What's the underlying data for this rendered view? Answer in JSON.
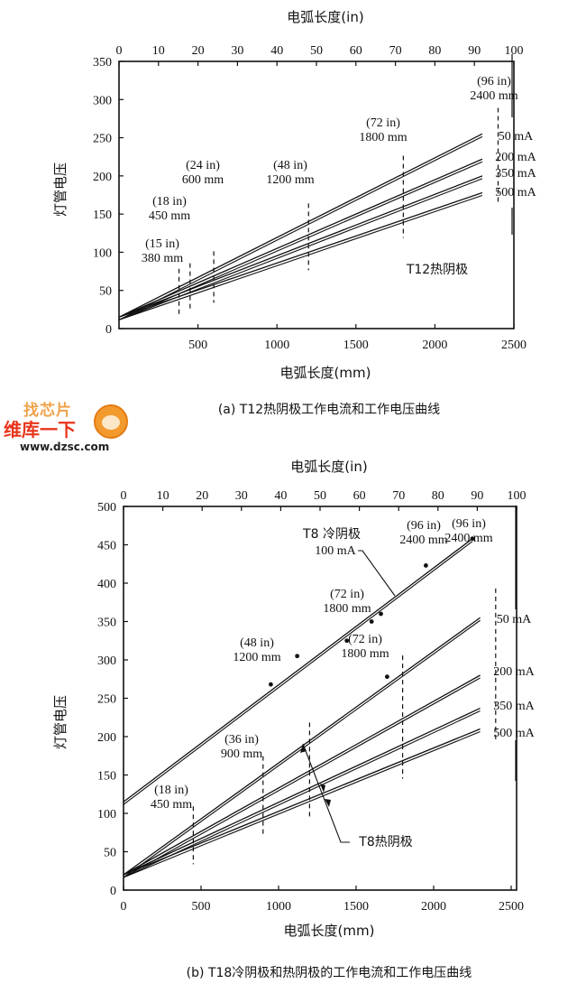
{
  "chart_data": [
    {
      "id": "a",
      "type": "line",
      "title": "(a) T12热阴极工作电流和工作电压曲线",
      "xlabel": "电弧长度(mm)",
      "x2label": "电弧长度(in)",
      "ylabel": "灯管电压",
      "xlim": [
        0,
        2500
      ],
      "x2lim": [
        0,
        100
      ],
      "ylim": [
        0,
        350
      ],
      "xticks": [
        500,
        1000,
        1500,
        2000,
        2500
      ],
      "x2ticks": [
        0,
        10,
        20,
        30,
        40,
        50,
        60,
        70,
        80,
        90,
        100
      ],
      "yticks": [
        0,
        50,
        100,
        150,
        200,
        250,
        300,
        350
      ],
      "grid": false,
      "annotation": "T12热阴极",
      "series": [
        {
          "name": "50 mA",
          "x": [
            0,
            2300
          ],
          "y": [
            15,
            255
          ]
        },
        {
          "name": "200 mA",
          "x": [
            0,
            2300
          ],
          "y": [
            15,
            222
          ]
        },
        {
          "name": "350 mA",
          "x": [
            0,
            2300
          ],
          "y": [
            15,
            200
          ]
        },
        {
          "name": "500 mA",
          "x": [
            0,
            2300
          ],
          "y": [
            15,
            178
          ]
        }
      ],
      "markers": [
        {
          "mm": 380,
          "label_in": "(15 in)",
          "label_mm": "380 mm"
        },
        {
          "mm": 450,
          "label_in": "(18 in)",
          "label_mm": "450 mm"
        },
        {
          "mm": 600,
          "label_in": "(24 in)",
          "label_mm": "600 mm"
        },
        {
          "mm": 1200,
          "label_in": "(48 in)",
          "label_mm": "1200 mm"
        },
        {
          "mm": 1800,
          "label_in": "(72 in)",
          "label_mm": "1800 mm"
        },
        {
          "mm": 2400,
          "label_in": "(96 in)",
          "label_mm": "2400 mm"
        }
      ]
    },
    {
      "id": "b",
      "type": "line",
      "title": "(b) T18冷阴极和热阴极的工作电流和工作电压曲线",
      "xlabel": "电弧长度(mm)",
      "x2label": "电弧长度(in)",
      "ylabel": "灯管电压",
      "xlim": [
        0,
        2550
      ],
      "x2lim": [
        0,
        100
      ],
      "ylim": [
        0,
        500
      ],
      "xticks": [
        0,
        500,
        1000,
        1500,
        2000,
        2500
      ],
      "x2ticks": [
        0,
        10,
        20,
        30,
        40,
        50,
        60,
        70,
        80,
        90,
        100
      ],
      "yticks": [
        0,
        50,
        100,
        150,
        200,
        250,
        300,
        350,
        400,
        450,
        500
      ],
      "grid": false,
      "annotations": [
        "T8 冷阴极",
        "100 mA",
        "T8热阴极"
      ],
      "series": [
        {
          "name": "T8 冷阴极 100 mA",
          "x": [
            0,
            2250
          ],
          "y": [
            115,
            458
          ]
        },
        {
          "name": "50 mA",
          "x": [
            0,
            2300
          ],
          "y": [
            20,
            355
          ]
        },
        {
          "name": "200 mA",
          "x": [
            0,
            2300
          ],
          "y": [
            20,
            280
          ]
        },
        {
          "name": "350 mA",
          "x": [
            0,
            2300
          ],
          "y": [
            20,
            237
          ]
        },
        {
          "name": "500 mA",
          "x": [
            0,
            2300
          ],
          "y": [
            20,
            210
          ]
        }
      ],
      "scatter": [
        {
          "x": 950,
          "y": 268
        },
        {
          "x": 1120,
          "y": 305
        },
        {
          "x": 1440,
          "y": 325
        },
        {
          "x": 1600,
          "y": 350
        },
        {
          "x": 1660,
          "y": 360
        },
        {
          "x": 1700,
          "y": 278
        },
        {
          "x": 1950,
          "y": 423
        },
        {
          "x": 2250,
          "y": 458
        }
      ],
      "markers": [
        {
          "mm": 450,
          "label_in": "(18 in)",
          "label_mm": "450 mm"
        },
        {
          "mm": 900,
          "label_in": "(36 in)",
          "label_mm": "900 mm"
        },
        {
          "mm": 1200,
          "label_in": "(48 in)",
          "label_mm": "1200 mm"
        },
        {
          "mm": 1800,
          "label_in": "(72 in)",
          "label_mm": "1800 mm"
        },
        {
          "mm": 2400,
          "label_in": "(96 in)",
          "label_mm": "2400 mm"
        }
      ]
    }
  ],
  "watermark": {
    "line1": "找芯片",
    "line2": "维库一下",
    "url": "www.dzsc.com"
  }
}
